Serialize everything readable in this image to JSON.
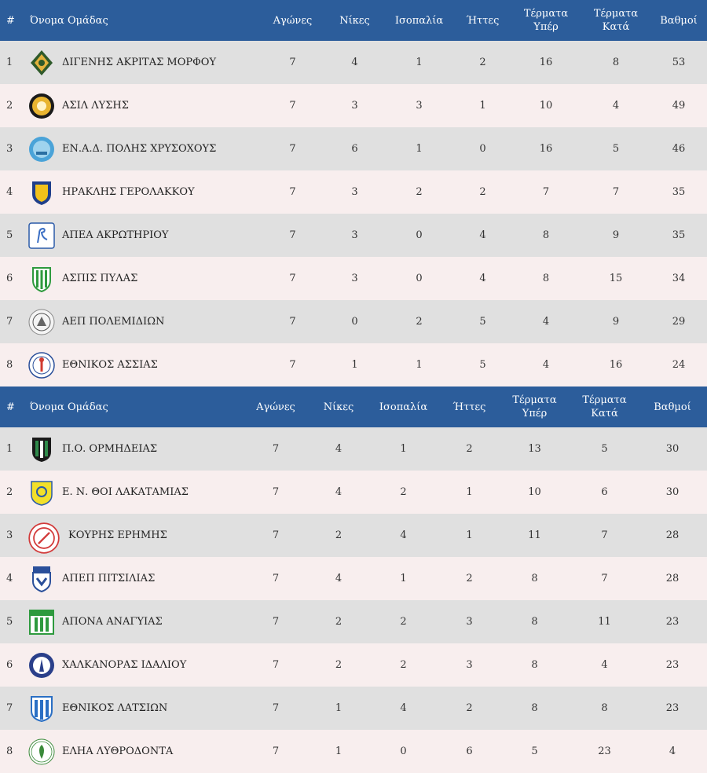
{
  "colors": {
    "header_bg": "#2c5d9b",
    "header_text": "#ffffff",
    "row_odd": "#e0e0e0",
    "row_even": "#f8eeee"
  },
  "headers": {
    "pos": "#",
    "team": "Όνομα Ομάδας",
    "played": "Αγώνες",
    "wins": "Νίκες",
    "draws": "Ισοπαλία",
    "losses": "Ήττες",
    "goals_for_1": "Τέρματα",
    "goals_for_2": "Υπέρ",
    "goals_against_1": "Τέρματα",
    "goals_against_2": "Κατά",
    "points": "Βαθμοί"
  },
  "groups": [
    {
      "rows": [
        {
          "pos": "1",
          "team": "ΔΙΓΕΝΗΣ ΑΚΡΙΤΑΣ ΜΟΡΦΟΥ",
          "played": "7",
          "wins": "4",
          "draws": "1",
          "losses": "2",
          "gf": "16",
          "ga": "8",
          "pts": "53",
          "logo": "digenis-akritas-crest"
        },
        {
          "pos": "2",
          "team": "ΑΣΙΛ ΛΥΣΗΣ",
          "played": "7",
          "wins": "3",
          "draws": "3",
          "losses": "1",
          "gf": "10",
          "ga": "4",
          "pts": "49",
          "logo": "asil-crest"
        },
        {
          "pos": "3",
          "team": "ΕΝ.Α.Δ. ΠΟΛΗΣ ΧΡΥΣΟΧΟΥΣ",
          "played": "7",
          "wins": "6",
          "draws": "1",
          "losses": "0",
          "gf": "16",
          "ga": "5",
          "pts": "46",
          "logo": "enad-crest"
        },
        {
          "pos": "4",
          "team": "ΗΡΑΚΛΗΣ ΓΕΡΟΛΑΚΚΟΥ",
          "played": "7",
          "wins": "3",
          "draws": "2",
          "losses": "2",
          "gf": "7",
          "ga": "7",
          "pts": "35",
          "logo": "iraklis-crest"
        },
        {
          "pos": "5",
          "team": "ΑΠΕΑ ΑΚΡΩΤΗΡΙΟΥ",
          "played": "7",
          "wins": "3",
          "draws": "0",
          "losses": "4",
          "gf": "8",
          "ga": "9",
          "pts": "35",
          "logo": "apea-flamingo-crest"
        },
        {
          "pos": "6",
          "team": "ΑΣΠΙΣ ΠΥΛΑΣ",
          "played": "7",
          "wins": "3",
          "draws": "0",
          "losses": "4",
          "gf": "8",
          "ga": "15",
          "pts": "34",
          "logo": "aspis-crest"
        },
        {
          "pos": "7",
          "team": "ΑΕΠ ΠΟΛΕΜΙΔΙΩΝ",
          "played": "7",
          "wins": "0",
          "draws": "2",
          "losses": "5",
          "gf": "4",
          "ga": "9",
          "pts": "29",
          "logo": "aep-crest"
        },
        {
          "pos": "8",
          "team": "ΕΘΝΙΚΟΣ ΑΣΣΙΑΣ",
          "played": "7",
          "wins": "1",
          "draws": "1",
          "losses": "5",
          "gf": "4",
          "ga": "16",
          "pts": "24",
          "logo": "ethnikos-assias-crest"
        }
      ]
    },
    {
      "rows": [
        {
          "pos": "1",
          "team": "Π.Ο. ΟΡΜΗΔΕΙΑΣ",
          "played": "7",
          "wins": "4",
          "draws": "1",
          "losses": "2",
          "gf": "13",
          "ga": "5",
          "pts": "30",
          "logo": "ormideia-crest"
        },
        {
          "pos": "2",
          "team": "Ε. Ν. ΘΟΙ ΛΑΚΑΤΑΜΙΑΣ",
          "played": "7",
          "wins": "4",
          "draws": "2",
          "losses": "1",
          "gf": "10",
          "ga": "6",
          "pts": "30",
          "logo": "thoi-crest"
        },
        {
          "pos": "3",
          "team": "ΚΟΥΡΗΣ ΕΡΗΜΗΣ",
          "played": "7",
          "wins": "2",
          "draws": "4",
          "losses": "1",
          "gf": "11",
          "ga": "7",
          "pts": "28",
          "logo": "kouris-crest"
        },
        {
          "pos": "4",
          "team": "ΑΠΕΠ ΠΙΤΣΙΛΙΑΣ",
          "played": "7",
          "wins": "4",
          "draws": "1",
          "losses": "2",
          "gf": "8",
          "ga": "7",
          "pts": "28",
          "logo": "apep-crest"
        },
        {
          "pos": "5",
          "team": "ΑΠΟΝΑ ΑΝΑΓΥΙΑΣ",
          "played": "7",
          "wins": "2",
          "draws": "2",
          "losses": "3",
          "gf": "8",
          "ga": "11",
          "pts": "23",
          "logo": "apona-crest"
        },
        {
          "pos": "6",
          "team": "ΧΑΛΚΑΝΟΡΑΣ ΙΔΑΛΙΟΥ",
          "played": "7",
          "wins": "2",
          "draws": "2",
          "losses": "3",
          "gf": "8",
          "ga": "4",
          "pts": "23",
          "logo": "chalkanoras-crest"
        },
        {
          "pos": "7",
          "team": "ΕΘΝΙΚΟΣ ΛΑΤΣΙΩΝ",
          "played": "7",
          "wins": "1",
          "draws": "4",
          "losses": "2",
          "gf": "8",
          "ga": "8",
          "pts": "23",
          "logo": "ethnikos-latsion-crest"
        },
        {
          "pos": "8",
          "team": "ΕΛΗΑ ΛΥΘΡΟΔΟΝΤΑ",
          "played": "7",
          "wins": "1",
          "draws": "0",
          "losses": "6",
          "gf": "5",
          "ga": "23",
          "pts": "4",
          "logo": "elia-crest"
        }
      ]
    }
  ]
}
